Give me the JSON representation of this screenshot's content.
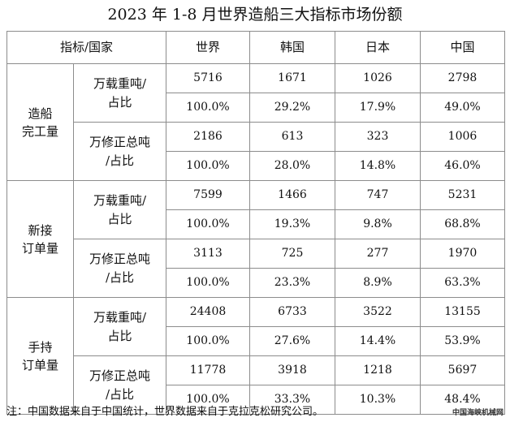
{
  "title": "2023 年 1-8 月世界造船三大指标市场份额",
  "header": [
    "指标/国家",
    "世界",
    "韩国",
    "日本",
    "中国"
  ],
  "groups": [
    {
      "name_lines": [
        "造船",
        "完工量"
      ],
      "metrics": [
        {
          "label_lines": [
            "万载重吨/",
            "占比"
          ],
          "values": [
            "5716",
            "1671",
            "1026",
            "2798"
          ],
          "shares": [
            "100.0%",
            "29.2%",
            "17.9%",
            "49.0%"
          ]
        },
        {
          "label_lines": [
            "万修正总吨",
            "/占比"
          ],
          "values": [
            "2186",
            "613",
            "323",
            "1006"
          ],
          "shares": [
            "100.0%",
            "28.0%",
            "14.8%",
            "46.0%"
          ]
        }
      ]
    },
    {
      "name_lines": [
        "新接",
        "订单量"
      ],
      "metrics": [
        {
          "label_lines": [
            "万载重吨/",
            "占比"
          ],
          "values": [
            "7599",
            "1466",
            "747",
            "5231"
          ],
          "shares": [
            "100.0%",
            "19.3%",
            "9.8%",
            "68.8%"
          ]
        },
        {
          "label_lines": [
            "万修正总吨",
            "/占比"
          ],
          "values": [
            "3113",
            "725",
            "277",
            "1970"
          ],
          "shares": [
            "100.0%",
            "23.3%",
            "8.9%",
            "63.3%"
          ]
        }
      ]
    },
    {
      "name_lines": [
        "手持",
        "订单量"
      ],
      "metrics": [
        {
          "label_lines": [
            "万载重吨/",
            "占比"
          ],
          "values": [
            "24408",
            "6733",
            "3522",
            "13155"
          ],
          "shares": [
            "100.0%",
            "27.6%",
            "14.4%",
            "53.9%"
          ]
        },
        {
          "label_lines": [
            "万修正总吨",
            "/占比"
          ],
          "values": [
            "11778",
            "3918",
            "1218",
            "5697"
          ],
          "shares": [
            "100.0%",
            "33.3%",
            "10.3%",
            "48.4%"
          ]
        }
      ]
    }
  ],
  "footnote": "注：中国数据来自于中国统计，世界数据来自于克拉克松研究公司。",
  "watermark": "中国海峡机械网"
}
